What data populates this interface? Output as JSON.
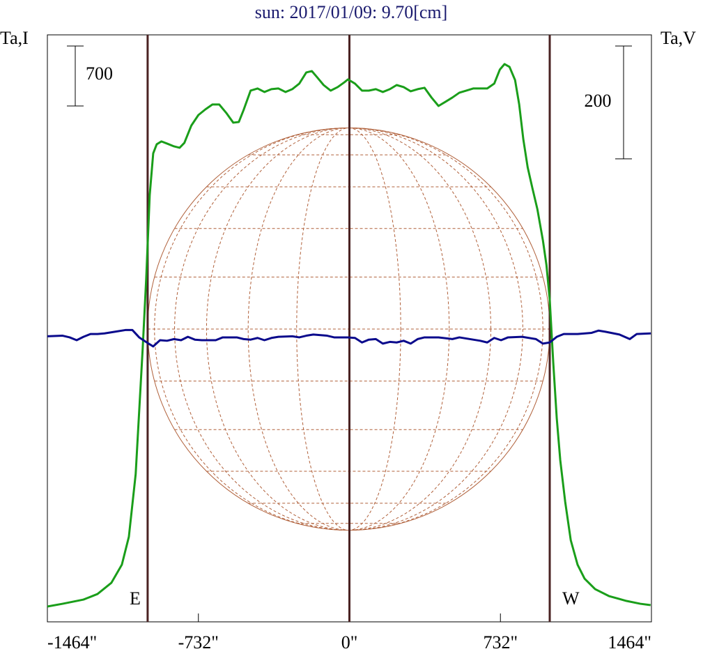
{
  "chart_data": {
    "type": "line",
    "title": "sun: 2017/01/09: 9.70[cm]",
    "y_label": "Ta,I",
    "y2_label": "Ta,V",
    "xlim": [
      -1464,
      1464
    ],
    "xticks": [
      {
        "value": -1464,
        "label": "-1464\""
      },
      {
        "value": -732,
        "label": "-732\""
      },
      {
        "value": 0,
        "label": "0\""
      },
      {
        "value": 732,
        "label": "732\""
      },
      {
        "value": 1464,
        "label": "1464\""
      }
    ],
    "ylim": [
      -195,
      6658
    ],
    "y2lim": [
      -505,
      535
    ],
    "vlines": [
      -978,
      0,
      971
    ],
    "vline_color": "#4a2222",
    "limb_labels": [
      "E",
      "W"
    ],
    "disk_color": "#b0603a",
    "scale_bars": [
      {
        "axis": "y",
        "value": 700
      },
      {
        "axis": "y2",
        "value": 200
      }
    ],
    "series": [
      {
        "name": "I",
        "color": "#1a9e1a",
        "x": [
          -1464,
          -1390,
          -1289,
          -1221,
          -1154,
          -1103,
          -1069,
          -1036,
          -1002,
          -985,
          -968,
          -951,
          -934,
          -911,
          -884,
          -850,
          -823,
          -800,
          -766,
          -732,
          -698,
          -664,
          -631,
          -597,
          -563,
          -536,
          -513,
          -479,
          -445,
          -412,
          -378,
          -344,
          -310,
          -277,
          -243,
          -209,
          -182,
          -159,
          -125,
          -91,
          -57,
          -24,
          -7,
          27,
          61,
          94,
          128,
          162,
          196,
          229,
          263,
          297,
          331,
          364,
          398,
          432,
          466,
          499,
          533,
          567,
          600,
          668,
          702,
          729,
          752,
          776,
          803,
          823,
          843,
          864,
          887,
          911,
          938,
          955,
          971,
          988,
          1005,
          1022,
          1046,
          1073,
          1106,
          1140,
          1191,
          1258,
          1343,
          1410,
          1460
        ],
        "values": [
          -16,
          16,
          65,
          130,
          260,
          472,
          798,
          1530,
          2996,
          3810,
          4786,
          5275,
          5381,
          5414,
          5389,
          5356,
          5340,
          5397,
          5600,
          5722,
          5788,
          5845,
          5845,
          5747,
          5633,
          5641,
          5780,
          6007,
          6032,
          5991,
          6024,
          6032,
          5991,
          6024,
          6089,
          6219,
          6235,
          6170,
          6072,
          6007,
          6048,
          6105,
          6138,
          6089,
          6007,
          6007,
          6024,
          5991,
          6024,
          6072,
          6048,
          5999,
          6024,
          6040,
          5926,
          5828,
          5877,
          5926,
          5983,
          6007,
          6032,
          6032,
          6089,
          6252,
          6317,
          6284,
          6130,
          5845,
          5438,
          5112,
          4868,
          4624,
          4257,
          3972,
          3565,
          2833,
          2182,
          1693,
          1205,
          757,
          472,
          309,
          187,
          106,
          49,
          16,
          0
        ]
      },
      {
        "name": "V",
        "color": "#0a0a8c",
        "axis": "y2",
        "x": [
          -1464,
          -1390,
          -1356,
          -1322,
          -1289,
          -1255,
          -1221,
          -1187,
          -1137,
          -1086,
          -1052,
          -1019,
          -978,
          -951,
          -918,
          -884,
          -850,
          -816,
          -783,
          -749,
          -715,
          -648,
          -614,
          -546,
          -513,
          -479,
          -445,
          -412,
          -378,
          -344,
          -277,
          -243,
          -209,
          -175,
          -108,
          -74,
          -7,
          27,
          61,
          94,
          128,
          162,
          196,
          229,
          263,
          297,
          331,
          364,
          432,
          499,
          533,
          600,
          634,
          668,
          702,
          735,
          769,
          837,
          904,
          938,
          971,
          1005,
          1039,
          1106,
          1174,
          1208,
          1241,
          1309,
          1359,
          1393,
          1461
        ],
        "values": [
          1,
          2,
          -1,
          -6,
          0,
          5,
          5,
          6,
          9,
          12,
          12,
          -1,
          -11,
          -17,
          -6,
          -7,
          -4,
          -6,
          0,
          -5,
          -6,
          -6,
          -1,
          -1,
          -4,
          -5,
          -2,
          -6,
          -2,
          0,
          1,
          -1,
          2,
          4,
          2,
          -1,
          -1,
          -2,
          -10,
          -5,
          -4,
          -12,
          -9,
          -10,
          -7,
          -12,
          -4,
          -1,
          -1,
          -4,
          -1,
          -5,
          -7,
          -10,
          -2,
          -6,
          -1,
          0,
          -4,
          -12,
          -10,
          0,
          5,
          5,
          7,
          11,
          9,
          4,
          -4,
          5,
          6
        ]
      }
    ]
  }
}
